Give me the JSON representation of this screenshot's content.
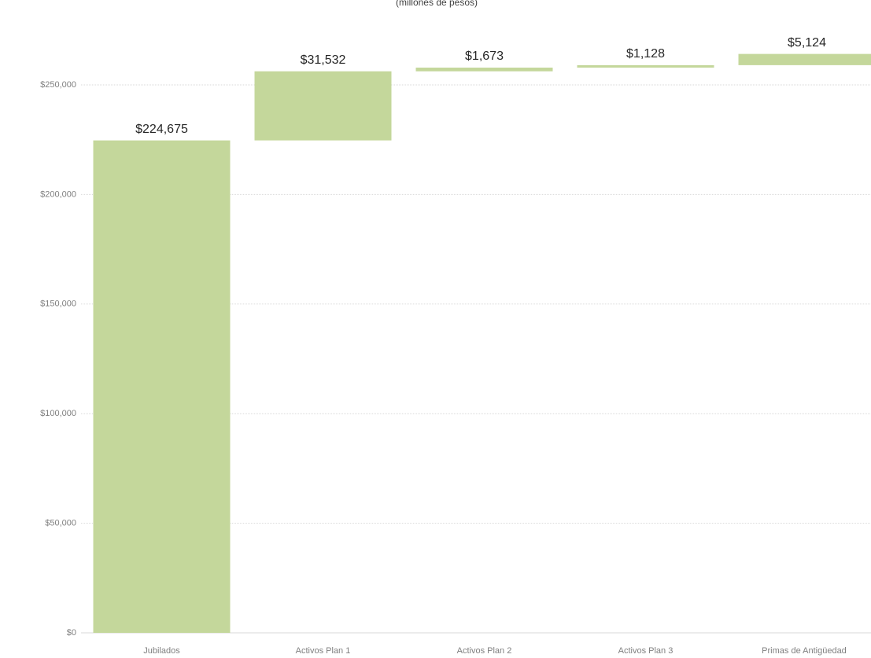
{
  "chart_data": {
    "type": "waterfall",
    "subtitle": "(millones de pesos)",
    "categories": [
      "Jubilados",
      "Activos Plan 1",
      "Activos Plan 2",
      "Activos Plan 3",
      "Primas de Antigüedad"
    ],
    "values": [
      224675,
      31532,
      1673,
      1128,
      5124
    ],
    "value_labels": [
      "$224,675",
      "$31,532",
      "$1,673",
      "$1,128",
      "$5,124"
    ],
    "color": "#c4d79b",
    "ylim": [
      0,
      250000
    ],
    "yticks": [
      {
        "value": 0,
        "label": "$0"
      },
      {
        "value": 50000,
        "label": "$50,000"
      },
      {
        "value": 100000,
        "label": "$100,000"
      },
      {
        "value": 150000,
        "label": "$150,000"
      },
      {
        "value": 200000,
        "label": "$200,000"
      },
      {
        "value": 250000,
        "label": "$250,000"
      }
    ],
    "grid": true
  }
}
